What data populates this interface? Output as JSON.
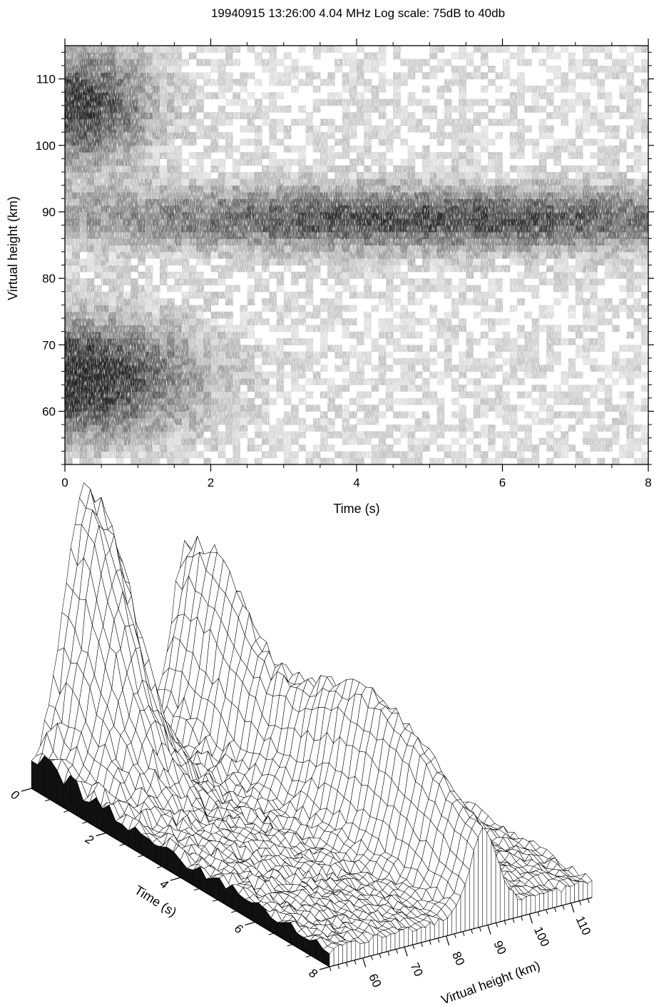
{
  "page": {
    "title": "19940915  13:26:00  4.04  MHz   Log scale: 75dB to 40db"
  },
  "chart_data": [
    {
      "type": "heatmap",
      "title": "19940915  13:26:00  4.04  MHz   Log scale: 75dB to 40db",
      "xlabel": "Time (s)",
      "ylabel": "Virtual height (km)",
      "xlim": [
        0,
        8
      ],
      "ylim": [
        52,
        115
      ],
      "xticks": [
        0,
        2,
        4,
        6,
        8
      ],
      "yticks": [
        60,
        70,
        80,
        90,
        100,
        110
      ],
      "value_scale": "log",
      "value_range_db": [
        75,
        40
      ],
      "colormap": "grayscale stipple (dark = strong echo)",
      "features": [
        {
          "height_km": 65,
          "time_s": [
            0,
            2.5
          ],
          "peak_time_s": 0.1,
          "relative_intensity": 1.0
        },
        {
          "height_km": 106,
          "time_s": [
            0,
            1.5
          ],
          "peak_time_s": 0.2,
          "relative_intensity": 0.85
        },
        {
          "height_km": 89,
          "time_s": [
            0,
            8
          ],
          "peak_time_s": 5.0,
          "relative_intensity": 0.8
        }
      ]
    },
    {
      "type": "surface",
      "xlabel": "Time (s)",
      "ylabel": "Virtual height (km)",
      "xticks": [
        0,
        2,
        4,
        6,
        8
      ],
      "yticks": [
        60,
        70,
        80,
        90,
        100,
        110
      ],
      "xlim": [
        0,
        8
      ],
      "ylim": [
        52,
        115
      ],
      "peaks": [
        {
          "time_s": 0.1,
          "height_km": 65,
          "relative_amplitude": 1.0
        },
        {
          "time_s": 0.5,
          "height_km": 89,
          "relative_amplitude": 0.5
        },
        {
          "time_s": 5.0,
          "height_km": 89,
          "relative_amplitude": 0.35
        }
      ]
    }
  ]
}
